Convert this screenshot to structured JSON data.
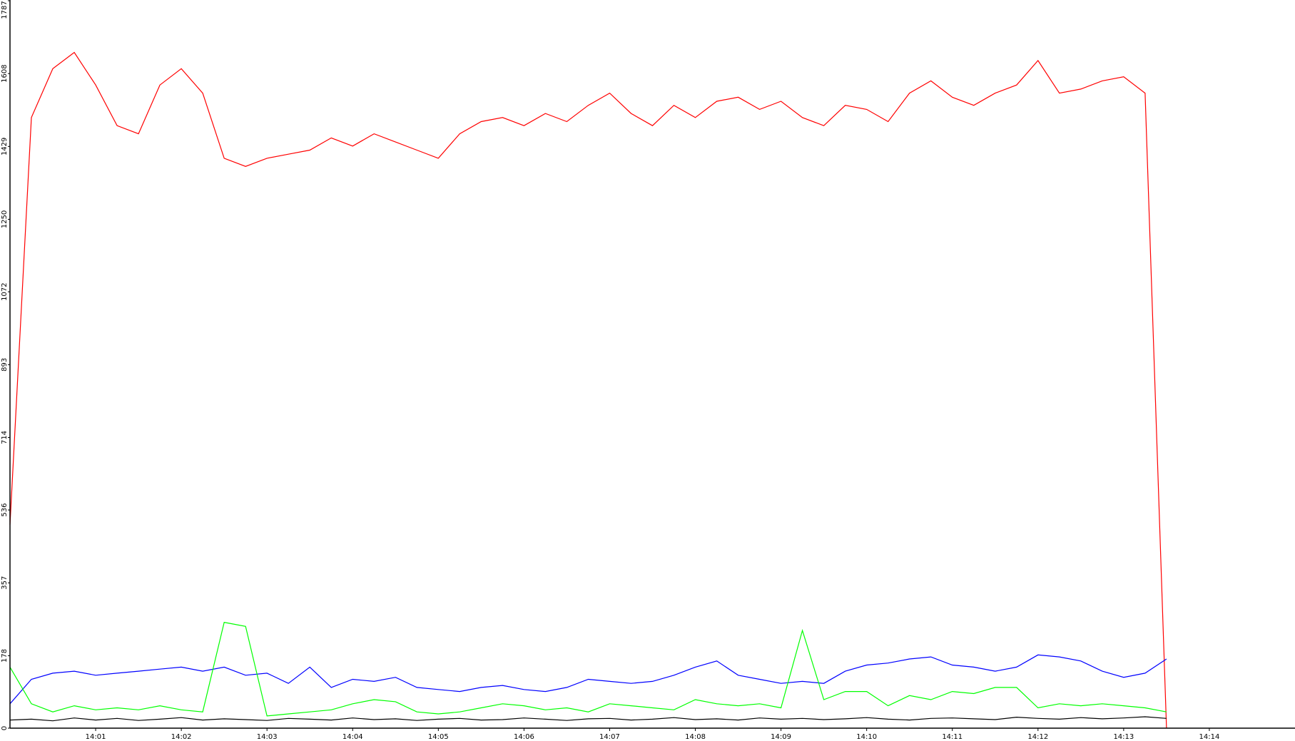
{
  "chart_data": {
    "type": "line",
    "x": [
      0,
      0.25,
      0.5,
      0.75,
      1,
      1.25,
      1.5,
      1.75,
      2,
      2.25,
      2.5,
      2.75,
      3,
      3.25,
      3.5,
      3.75,
      4,
      4.25,
      4.5,
      4.75,
      5,
      5.25,
      5.5,
      5.75,
      6,
      6.25,
      6.5,
      6.75,
      7,
      7.25,
      7.5,
      7.75,
      8,
      8.25,
      8.5,
      8.75,
      9,
      9.25,
      9.5,
      9.75,
      10,
      10.25,
      10.5,
      10.75,
      11,
      11.25,
      11.5,
      11.75,
      12,
      12.25,
      12.5,
      12.75,
      13,
      13.25,
      13.5
    ],
    "series": [
      {
        "color": "#ff0000",
        "values": [
          500,
          1500,
          1620,
          1660,
          1580,
          1480,
          1460,
          1580,
          1620,
          1560,
          1400,
          1380,
          1400,
          1410,
          1420,
          1450,
          1430,
          1460,
          1440,
          1420,
          1400,
          1460,
          1490,
          1500,
          1480,
          1510,
          1490,
          1530,
          1560,
          1510,
          1480,
          1530,
          1500,
          1540,
          1550,
          1520,
          1540,
          1500,
          1480,
          1530,
          1520,
          1490,
          1560,
          1590,
          1550,
          1530,
          1560,
          1580,
          1640,
          1560,
          1570,
          1590,
          1600,
          1560,
          0
        ]
      },
      {
        "color": "#0000ff",
        "values": [
          60,
          120,
          135,
          140,
          130,
          135,
          140,
          145,
          150,
          140,
          150,
          130,
          135,
          110,
          150,
          100,
          120,
          115,
          125,
          100,
          95,
          90,
          100,
          105,
          95,
          90,
          100,
          120,
          115,
          110,
          115,
          130,
          150,
          165,
          130,
          120,
          110,
          115,
          110,
          140,
          155,
          160,
          170,
          175,
          155,
          150,
          140,
          150,
          180,
          175,
          165,
          140,
          125,
          135,
          170
        ]
      },
      {
        "color": "#00ff00",
        "values": [
          150,
          60,
          40,
          55,
          45,
          50,
          45,
          55,
          45,
          40,
          260,
          250,
          30,
          35,
          40,
          45,
          60,
          70,
          65,
          40,
          35,
          40,
          50,
          60,
          55,
          45,
          50,
          40,
          60,
          55,
          50,
          45,
          70,
          60,
          55,
          60,
          50,
          240,
          70,
          90,
          90,
          55,
          80,
          70,
          90,
          85,
          100,
          100,
          50,
          60,
          55,
          60,
          55,
          50,
          40
        ]
      },
      {
        "color": "#000000",
        "values": [
          20,
          22,
          18,
          25,
          20,
          24,
          19,
          22,
          26,
          20,
          23,
          21,
          19,
          24,
          22,
          20,
          25,
          21,
          23,
          19,
          22,
          24,
          20,
          21,
          25,
          22,
          19,
          23,
          24,
          20,
          22,
          26,
          21,
          23,
          20,
          25,
          22,
          24,
          21,
          23,
          26,
          22,
          20,
          24,
          25,
          23,
          21,
          27,
          24,
          22,
          26,
          23,
          25,
          28,
          24
        ]
      }
    ],
    "xlim": [
      0,
      15
    ],
    "xticks": [
      {
        "value": 1,
        "label": "14:01"
      },
      {
        "value": 2,
        "label": "14:02"
      },
      {
        "value": 3,
        "label": "14:03"
      },
      {
        "value": 4,
        "label": "14:04"
      },
      {
        "value": 5,
        "label": "14:05"
      },
      {
        "value": 6,
        "label": "14:06"
      },
      {
        "value": 7,
        "label": "14:07"
      },
      {
        "value": 8,
        "label": "14:08"
      },
      {
        "value": 9,
        "label": "14:09"
      },
      {
        "value": 10,
        "label": "14:10"
      },
      {
        "value": 11,
        "label": "14:11"
      },
      {
        "value": 12,
        "label": "14:12"
      },
      {
        "value": 13,
        "label": "14:13"
      },
      {
        "value": 14,
        "label": "14:14"
      }
    ],
    "ylim": [
      0,
      1787
    ],
    "yticks": [
      0,
      178,
      357,
      536,
      714,
      893,
      1072,
      1250,
      1429,
      1608,
      1787
    ]
  }
}
